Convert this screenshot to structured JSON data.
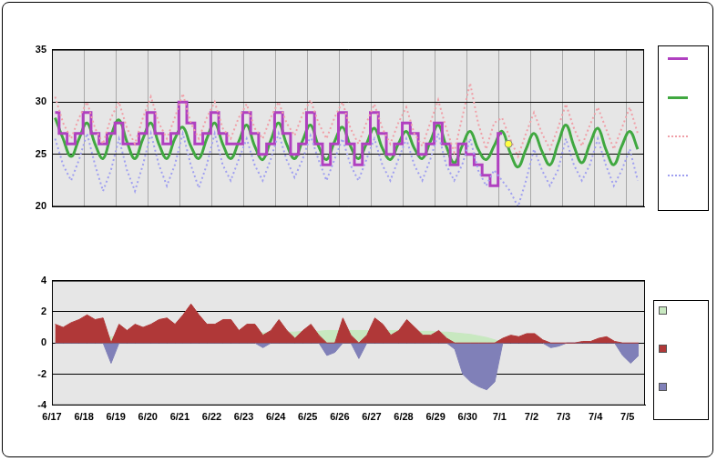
{
  "chart_data": [
    {
      "type": "line",
      "x": [
        0.1,
        0.35,
        0.6,
        0.85,
        1.1,
        1.35,
        1.6,
        1.85,
        2.1,
        2.35,
        2.6,
        2.85,
        3.1,
        3.35,
        3.6,
        3.85,
        4.1,
        4.35,
        4.6,
        4.85,
        5.1,
        5.35,
        5.6,
        5.85,
        6.1,
        6.35,
        6.6,
        6.85,
        7.1,
        7.35,
        7.6,
        7.85,
        8.1,
        8.35,
        8.6,
        8.85,
        9.1,
        9.35,
        9.6,
        9.85,
        10.1,
        10.35,
        10.6,
        10.85,
        11.1,
        11.35,
        11.6,
        11.85,
        12.1,
        12.35,
        12.6,
        12.85,
        13.1,
        13.35,
        13.6,
        13.85,
        14.1,
        14.35,
        14.6,
        14.85,
        15.1,
        15.35,
        15.6,
        15.85,
        16.1,
        16.35,
        16.6,
        16.85,
        17.1,
        17.35,
        17.6,
        17.85,
        18.1,
        18.35
      ],
      "xlim": [
        0,
        18.55
      ],
      "xticks": [
        {
          "value": 0,
          "label": "6/17"
        },
        {
          "value": 1,
          "label": "6/18"
        },
        {
          "value": 2,
          "label": "6/19"
        },
        {
          "value": 3,
          "label": "6/20"
        },
        {
          "value": 4,
          "label": "6/21"
        },
        {
          "value": 5,
          "label": "6/22"
        },
        {
          "value": 6,
          "label": "6/23"
        },
        {
          "value": 7,
          "label": "6/24"
        },
        {
          "value": 8,
          "label": "6/25"
        },
        {
          "value": 9,
          "label": "6/26"
        },
        {
          "value": 10,
          "label": "6/27"
        },
        {
          "value": 11,
          "label": "6/28"
        },
        {
          "value": 12,
          "label": "6/29"
        },
        {
          "value": 13,
          "label": "6/30"
        },
        {
          "value": 14,
          "label": "7/1"
        },
        {
          "value": 15,
          "label": "7/2"
        },
        {
          "value": 16,
          "label": "7/3"
        },
        {
          "value": 17,
          "label": "7/4"
        },
        {
          "value": 18,
          "label": "7/5"
        }
      ],
      "ylim": [
        20,
        35
      ],
      "yticks": [
        20,
        25,
        30,
        35
      ],
      "grid": true,
      "tick_labels": "y",
      "series": [
        {
          "color": "#f0a0a8",
          "line_style": "dotted",
          "values": [
            30.5,
            28,
            26.5,
            28.5,
            30,
            27.5,
            26,
            28.5,
            30,
            27.5,
            26,
            28.5,
            30.5,
            28,
            26.5,
            28.5,
            30.8,
            28,
            26.5,
            28.5,
            30,
            27.5,
            26.5,
            28.5,
            29.8,
            27.5,
            26.5,
            28.5,
            30,
            28,
            26.8,
            28.8,
            30.2,
            28,
            26.5,
            28.5,
            30,
            27.5,
            26,
            28,
            29.8,
            27.5,
            26,
            28,
            29.5,
            27,
            25.8,
            28,
            30.2,
            27.5,
            25.2,
            28.5,
            31.8,
            28,
            25.5,
            28,
            28.5,
            26.5,
            24.8,
            27,
            29,
            27,
            25.5,
            27.5,
            29.8,
            27.5,
            25.8,
            27.8,
            29.5,
            27.5,
            25.5,
            27.5,
            29.5,
            27
          ]
        },
        {
          "color": "#a0a0f0",
          "line_style": "dotted",
          "values": [
            26.5,
            24,
            22.5,
            24.5,
            27,
            24,
            21.5,
            23.5,
            26.5,
            23.5,
            21.5,
            24,
            27,
            24,
            22,
            24,
            27,
            24,
            21.8,
            24,
            27,
            24,
            22.5,
            24.5,
            26.5,
            24,
            22.5,
            24.5,
            27,
            24.5,
            22.8,
            24.5,
            26.8,
            24.5,
            22.5,
            24.5,
            26.5,
            24,
            22.5,
            24.5,
            26.5,
            24,
            22.5,
            24.5,
            26.5,
            24,
            22.5,
            24.5,
            27,
            24,
            22.5,
            24,
            26.5,
            23.5,
            22,
            23.5,
            22.5,
            21.5,
            20,
            22.5,
            25.5,
            23.5,
            22,
            23.5,
            26.5,
            24,
            22.5,
            24,
            26.5,
            24,
            22,
            23.5,
            25.5,
            22.5
          ]
        },
        {
          "color": "#b040c0",
          "line_style": "steps",
          "values": [
            29,
            27,
            26,
            27,
            29,
            27,
            26,
            27,
            28,
            26,
            26,
            27,
            29,
            27,
            26,
            27,
            30,
            28,
            26,
            27,
            29,
            27,
            26,
            26,
            29,
            27,
            25,
            26,
            29,
            27,
            25,
            26,
            29,
            26,
            24,
            26,
            29,
            26,
            24,
            26,
            29,
            27,
            25,
            26,
            28,
            27,
            25,
            26,
            28,
            26,
            24,
            26,
            25,
            24,
            23,
            22,
            27,
            null,
            null,
            null,
            null,
            null,
            null,
            null,
            null,
            null,
            null,
            null,
            null,
            null,
            null,
            null,
            null,
            null
          ]
        },
        {
          "color": "#40a840",
          "line_style": "smooth",
          "values": [
            28.5,
            26.5,
            24.8,
            26.5,
            28,
            26,
            24.6,
            26.8,
            28.3,
            26.2,
            24.6,
            26.5,
            28,
            26,
            24.6,
            26.5,
            27.6,
            25.8,
            24.6,
            26.5,
            28,
            26,
            24.6,
            26.2,
            27.8,
            25.8,
            24.5,
            26.3,
            28,
            26,
            24.6,
            26.3,
            27.8,
            25.8,
            24.5,
            26.2,
            27.6,
            25.8,
            24.6,
            26,
            27.5,
            25.6,
            24.5,
            26,
            27.2,
            25.6,
            24.6,
            26.2,
            27.8,
            25.8,
            24.2,
            25.8,
            27.2,
            25.5,
            24.5,
            25.8,
            27.2,
            25.2,
            23.8,
            25.5,
            27,
            25.3,
            24,
            26,
            27.8,
            25.8,
            24.2,
            26,
            27.5,
            25.5,
            24,
            25.8,
            27.2,
            25.5
          ]
        },
        {
          "type": "scatter",
          "color": "#ffff40",
          "marker": "circle",
          "x": [
            14.3
          ],
          "values": [
            26
          ]
        }
      ]
    },
    {
      "type": "area",
      "x": [
        0.1,
        0.35,
        0.6,
        0.85,
        1.1,
        1.35,
        1.6,
        1.85,
        2.1,
        2.35,
        2.6,
        2.85,
        3.1,
        3.35,
        3.6,
        3.85,
        4.1,
        4.35,
        4.6,
        4.85,
        5.1,
        5.35,
        5.6,
        5.85,
        6.1,
        6.35,
        6.6,
        6.85,
        7.1,
        7.35,
        7.6,
        7.85,
        8.1,
        8.35,
        8.6,
        8.85,
        9.1,
        9.35,
        9.6,
        9.85,
        10.1,
        10.35,
        10.6,
        10.85,
        11.1,
        11.35,
        11.6,
        11.85,
        12.1,
        12.35,
        12.6,
        12.85,
        13.1,
        13.35,
        13.6,
        13.85,
        14.1,
        14.35,
        14.6,
        14.85,
        15.1,
        15.35,
        15.6,
        15.85,
        16.1,
        16.35,
        16.6,
        16.85,
        17.1,
        17.35,
        17.6,
        17.85,
        18.1,
        18.35
      ],
      "xlim": [
        0,
        18.55
      ],
      "xticks": [
        {
          "value": 0,
          "label": "6/17"
        },
        {
          "value": 1,
          "label": "6/18"
        },
        {
          "value": 2,
          "label": "6/19"
        },
        {
          "value": 3,
          "label": "6/20"
        },
        {
          "value": 4,
          "label": "6/21"
        },
        {
          "value": 5,
          "label": "6/22"
        },
        {
          "value": 6,
          "label": "6/23"
        },
        {
          "value": 7,
          "label": "6/24"
        },
        {
          "value": 8,
          "label": "6/25"
        },
        {
          "value": 9,
          "label": "6/26"
        },
        {
          "value": 10,
          "label": "6/27"
        },
        {
          "value": 11,
          "label": "6/28"
        },
        {
          "value": 12,
          "label": "6/29"
        },
        {
          "value": 13,
          "label": "6/30"
        },
        {
          "value": 14,
          "label": "7/1"
        },
        {
          "value": 15,
          "label": "7/2"
        },
        {
          "value": 16,
          "label": "7/3"
        },
        {
          "value": 17,
          "label": "7/4"
        },
        {
          "value": 18,
          "label": "7/5"
        }
      ],
      "ylim": [
        -4,
        4
      ],
      "yticks": [
        -4,
        -2,
        0,
        2,
        4
      ],
      "grid": "y",
      "series": [
        {
          "color": "#c8e8c0",
          "values": [
            0.3,
            0.3,
            0.35,
            0.35,
            0.35,
            0.4,
            0.4,
            0.4,
            0.4,
            0.45,
            0.45,
            0.45,
            0.45,
            0.5,
            0.5,
            0.5,
            0.5,
            0.5,
            0.55,
            0.55,
            0.55,
            0.6,
            0.6,
            0.6,
            0.6,
            0.65,
            0.65,
            0.65,
            0.7,
            0.7,
            0.7,
            0.75,
            0.75,
            0.75,
            0.8,
            0.8,
            0.8,
            0.8,
            0.8,
            0.8,
            0.8,
            0.8,
            0.8,
            0.8,
            0.8,
            0.75,
            0.75,
            0.75,
            0.7,
            0.7,
            0.65,
            0.6,
            0.55,
            0.45,
            0.35,
            0.2,
            0.05,
            null,
            null,
            null,
            null,
            null,
            null,
            null,
            null,
            null,
            null,
            null,
            null,
            null,
            null,
            null,
            null,
            null
          ]
        },
        {
          "color": "#b03838",
          "values": [
            1.2,
            1,
            1.3,
            1.5,
            1.8,
            1.5,
            1.6,
            0,
            1.2,
            0.8,
            1.2,
            1,
            1.2,
            1.5,
            1.6,
            1.2,
            1.8,
            2.5,
            1.8,
            1.2,
            1.2,
            1.5,
            1.5,
            0.8,
            1.2,
            1.2,
            0.5,
            0.8,
            1.5,
            0.8,
            0.3,
            0.8,
            1.2,
            0.5,
            0,
            0,
            1.6,
            0.5,
            0,
            0.5,
            1.6,
            1.2,
            0.5,
            0.8,
            1.5,
            1,
            0.5,
            0.5,
            0.8,
            0.3,
            0,
            0,
            0,
            0,
            0,
            0,
            0.3,
            0.5,
            0.4,
            0.6,
            0.6,
            0.2,
            0,
            0,
            0,
            0,
            0.1,
            0.1,
            0.3,
            0.4,
            0.1,
            0,
            0,
            0
          ]
        },
        {
          "color": "#8080b8",
          "values": [
            0,
            0,
            0,
            0,
            0,
            0,
            0,
            -1.3,
            0,
            0,
            0,
            0,
            0,
            0,
            0,
            0,
            0,
            0,
            0,
            0,
            0,
            0,
            0,
            0,
            0,
            0,
            -0.3,
            0,
            0,
            0,
            0,
            0,
            0,
            0,
            -0.8,
            -0.6,
            0,
            0,
            -1,
            0,
            0,
            0,
            0,
            0,
            0,
            0,
            0,
            0,
            0,
            0,
            -0.4,
            -2,
            -2.5,
            -2.8,
            -3,
            -2.5,
            0,
            0,
            0,
            0,
            0,
            0,
            -0.3,
            -0.2,
            0,
            0,
            0,
            0,
            0,
            0,
            0,
            -0.8,
            -1.3,
            -0.8
          ]
        }
      ]
    }
  ]
}
